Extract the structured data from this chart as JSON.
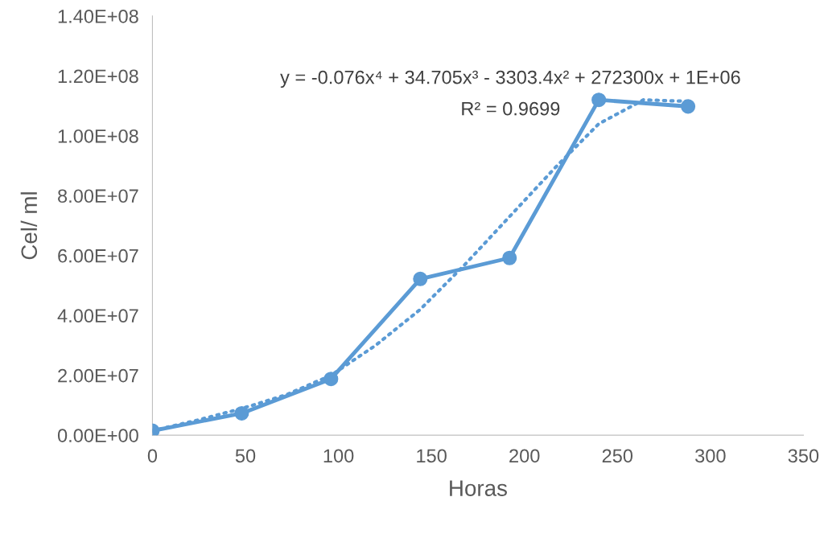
{
  "chart_data": {
    "type": "line",
    "xlabel": "Horas",
    "ylabel": "Cel/ ml",
    "xlim": [
      0,
      350
    ],
    "xticks": [
      0,
      50,
      100,
      150,
      200,
      250,
      300,
      350
    ],
    "ylim": [
      0,
      140000000
    ],
    "yticks": [
      {
        "value": 0,
        "label": "0.00E+00"
      },
      {
        "value": 20000000,
        "label": "2.00E+07"
      },
      {
        "value": 40000000,
        "label": "4.00E+07"
      },
      {
        "value": 60000000,
        "label": "6.00E+07"
      },
      {
        "value": 80000000,
        "label": "8.00E+07"
      },
      {
        "value": 100000000,
        "label": "1.00E+08"
      },
      {
        "value": 120000000,
        "label": "1.20E+08"
      },
      {
        "value": 140000000,
        "label": "1.40E+08"
      }
    ],
    "grid": false,
    "series": [
      {
        "color": "#5b9bd5",
        "marker": "circle",
        "line_style": "solid",
        "x": [
          0,
          48,
          96,
          144,
          192,
          240,
          288
        ],
        "values": [
          1500000,
          7300000,
          18800000,
          52200000,
          59200000,
          112000000,
          109800000
        ]
      },
      {
        "color": "#5b9bd5",
        "marker": "none",
        "line_style": "dotted",
        "x": [
          0,
          24,
          48,
          72,
          96,
          120,
          144,
          168,
          192,
          216,
          240,
          264,
          288
        ],
        "values": [
          1500000,
          5000000,
          8900000,
          13500000,
          20000000,
          30000000,
          42000000,
          57000000,
          73000000,
          89000000,
          104000000,
          112000000,
          111500000
        ]
      }
    ],
    "annotations": [
      "y = -0.076x⁴ + 34.705x³ - 3303.4x² + 272300x + 1E+06",
      "R² = 0.9699"
    ]
  }
}
